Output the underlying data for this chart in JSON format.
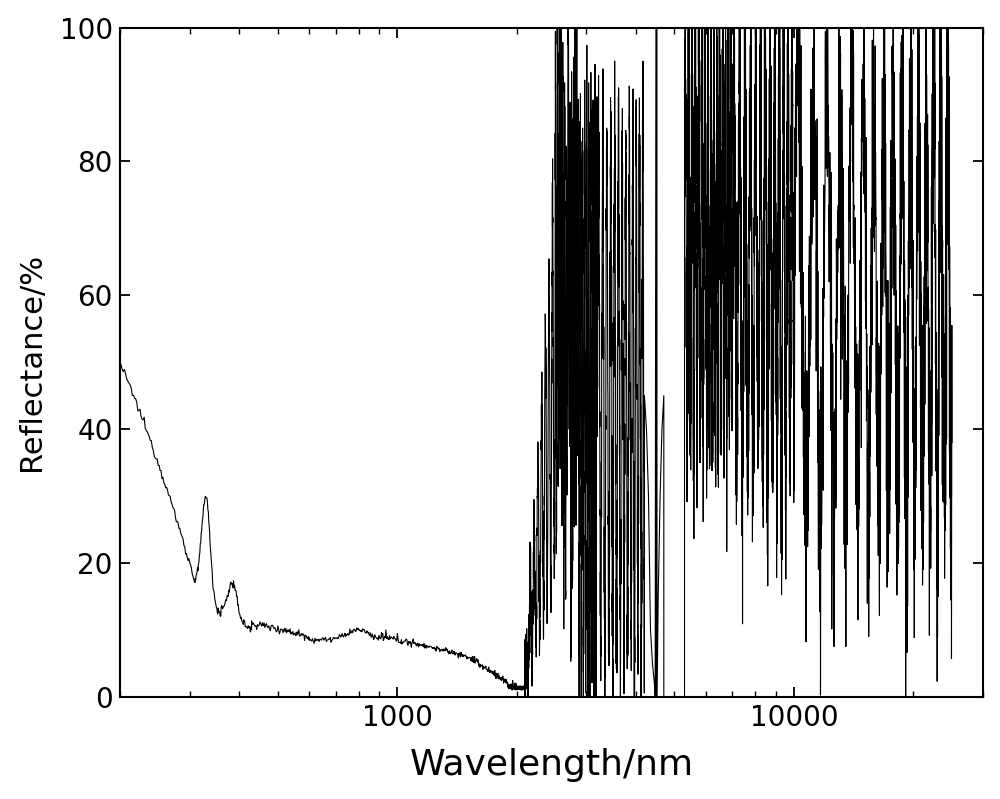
{
  "xlabel": "Wavelength/nm",
  "ylabel": "Reflectance/%",
  "xlim": [
    200,
    30000
  ],
  "ylim": [
    0,
    100
  ],
  "yticks": [
    0,
    20,
    40,
    60,
    80,
    100
  ],
  "background_color": "#ffffff",
  "line_color": "#000000",
  "line_width": 0.8,
  "xlabel_fontsize": 26,
  "ylabel_fontsize": 22,
  "tick_fontsize": 20
}
